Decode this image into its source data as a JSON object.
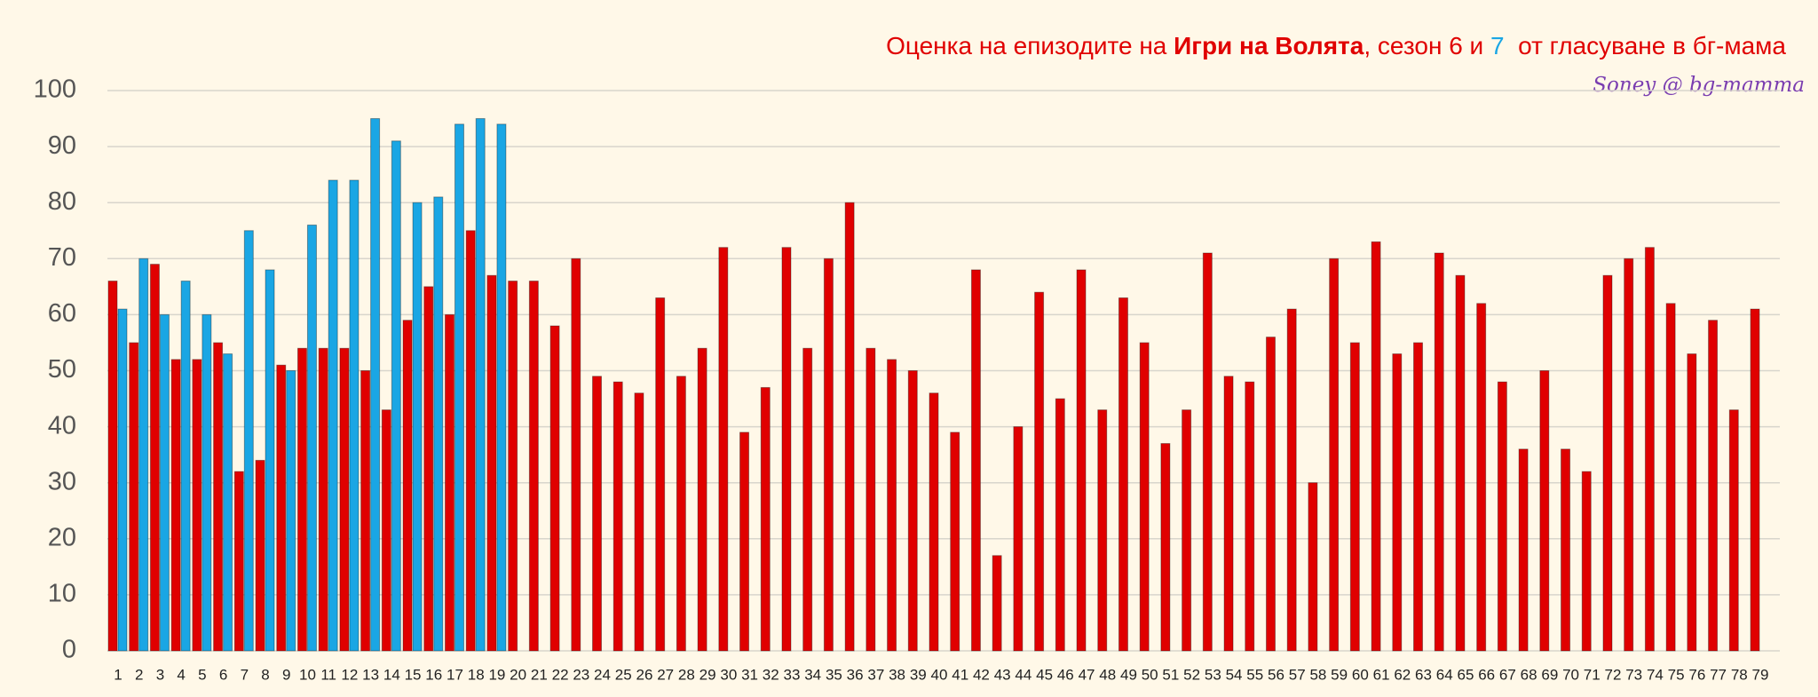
{
  "chart_data": {
    "type": "bar",
    "title_parts": [
      "Оценка на епизодите на ",
      "Игри на Волята",
      ", сезон 6 и ",
      "7",
      "  от гласуване в бг-мама"
    ],
    "subtitle": "Soney @ bg-mamma",
    "categories": [
      "1",
      "2",
      "3",
      "4",
      "5",
      "6",
      "7",
      "8",
      "9",
      "10",
      "11",
      "12",
      "13",
      "14",
      "15",
      "16",
      "17",
      "18",
      "19",
      "20",
      "21",
      "22",
      "23",
      "24",
      "25",
      "26",
      "27",
      "28",
      "29",
      "30",
      "31",
      "32",
      "33",
      "34",
      "35",
      "36",
      "37",
      "38",
      "39",
      "40",
      "41",
      "42",
      "43",
      "44",
      "45",
      "46",
      "47",
      "48",
      "49",
      "50",
      "51",
      "52",
      "53",
      "54",
      "55",
      "56",
      "57",
      "58",
      "59",
      "60",
      "61",
      "62",
      "63",
      "64",
      "65",
      "66",
      "67",
      "68",
      "69",
      "70",
      "71",
      "72",
      "73",
      "74",
      "75",
      "76",
      "77",
      "78",
      "79"
    ],
    "series": [
      {
        "color": "#e00000",
        "values": [
          66,
          55,
          69,
          52,
          52,
          55,
          32,
          34,
          51,
          54,
          54,
          54,
          50,
          43,
          59,
          65,
          60,
          75,
          67,
          66,
          66,
          58,
          70,
          49,
          48,
          46,
          63,
          49,
          54,
          72,
          39,
          47,
          72,
          54,
          70,
          80,
          54,
          52,
          50,
          46,
          39,
          68,
          17,
          40,
          64,
          45,
          68,
          43,
          63,
          55,
          37,
          43,
          71,
          49,
          48,
          56,
          61,
          30,
          70,
          55,
          73,
          53,
          55,
          71,
          67,
          62,
          48,
          36,
          50,
          36,
          32,
          67,
          70,
          72,
          62,
          53,
          59,
          43,
          61
        ]
      },
      {
        "color": "#1aa6e4",
        "values": [
          61,
          70,
          60,
          66,
          60,
          53,
          75,
          68,
          50,
          76,
          84,
          84,
          95,
          91,
          80,
          81,
          94,
          95,
          94,
          null,
          null,
          null,
          null,
          null,
          null,
          null,
          null,
          null,
          null,
          null,
          null,
          null,
          null,
          null,
          null,
          null,
          null,
          null,
          null,
          null,
          null,
          null,
          null,
          null,
          null,
          null,
          null,
          null,
          null,
          null,
          null,
          null,
          null,
          null,
          null,
          null,
          null,
          null,
          null,
          null,
          null,
          null,
          null,
          null,
          null,
          null,
          null,
          null,
          null,
          null,
          null,
          null,
          null,
          null,
          null,
          null,
          null,
          null,
          null
        ]
      }
    ],
    "ylim": [
      0,
      100
    ],
    "yticks": [
      0,
      10,
      20,
      30,
      40,
      50,
      60,
      70,
      80,
      90,
      100
    ],
    "grid": true
  }
}
